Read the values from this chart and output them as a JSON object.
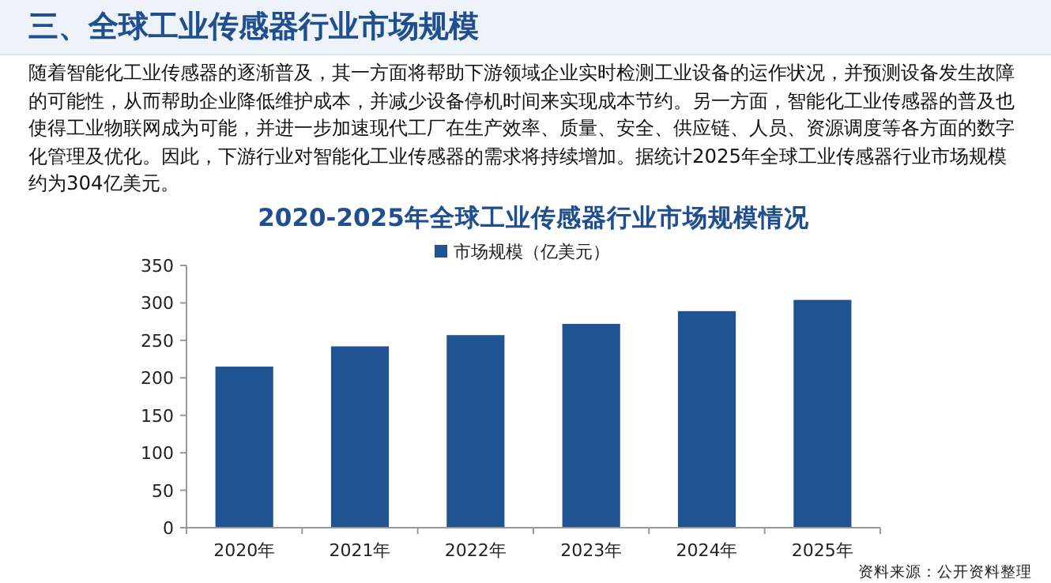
{
  "chart_data": {
    "type": "bar",
    "title": "2020-2025年全球工业传感器行业市场规模情况",
    "annotations": [
      "三、全球工业传感器行业市场规模",
      "随着智能化工业传感器的逐渐普及，其一方面将帮助下游领域企业实时检测工业设备的运作状况，并预测设备发生故障的可能性，从而帮助企业降低维护成本，并减少设备停机时间来实现成本节约。另一方面，智能化工业传感器的普及也使得工业物联网成为可能，并进一步加速现代工厂在生产效率、质量、安全、供应链、人员、资源调度等各方面的数字化管理及优化。因此，下游行业对智能化工业传感器的需求将持续增加。据统计2025年全球工业传感器行业市场规模约为304亿美元。",
      "资料来源：公开资料整理"
    ],
    "categories": [
      "2020年",
      "2021年",
      "2022年",
      "2023年",
      "2024年",
      "2025年"
    ],
    "series": [
      {
        "name": "市场规模（亿美元）",
        "color": "#1f5392",
        "values": [
          215,
          242,
          257,
          272,
          289,
          304
        ]
      }
    ],
    "ylim": [
      0,
      350
    ],
    "yticks": [
      0,
      50,
      100,
      150,
      200,
      250,
      300,
      350
    ],
    "grid": false,
    "legend": "top"
  }
}
